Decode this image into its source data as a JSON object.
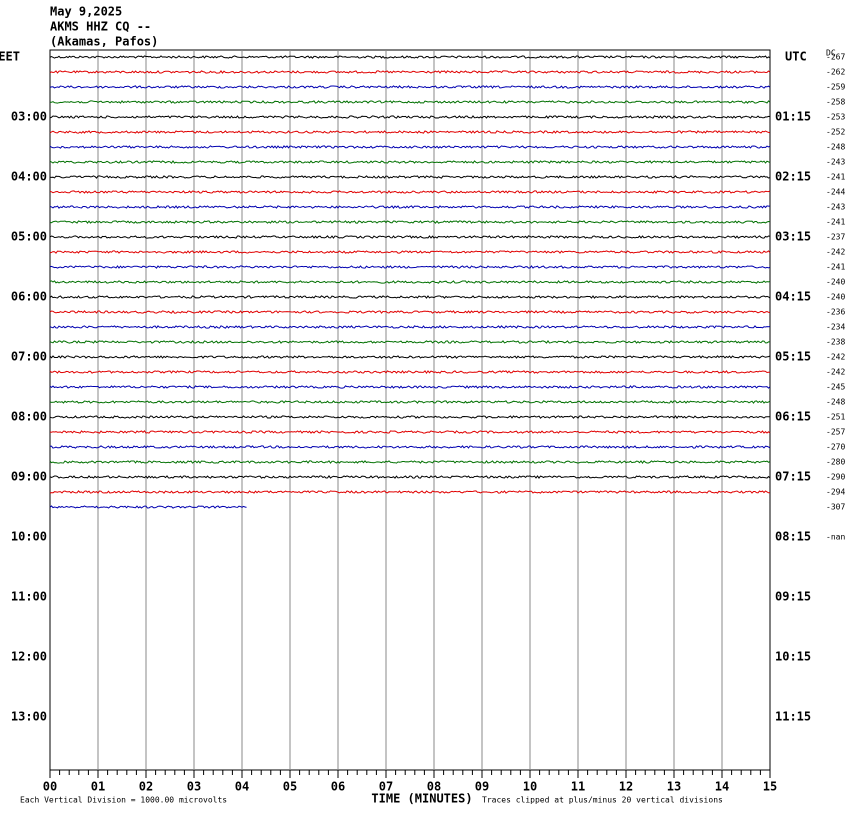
{
  "header": {
    "date": "May 9,2025",
    "station": "AKMS HHZ CQ --",
    "location": "(Akamas, Pafos)"
  },
  "left_header": "EET",
  "left_times": [
    "03:00",
    "04:00",
    "05:00",
    "06:00",
    "07:00",
    "08:00",
    "09:00",
    "10:00",
    "11:00",
    "12:00",
    "13:00"
  ],
  "right_header": "UTC",
  "right_times": [
    "01:15",
    "02:15",
    "03:15",
    "04:15",
    "05:15",
    "06:15",
    "07:15",
    "08:15",
    "09:15",
    "10:15",
    "11:15"
  ],
  "dc_header": "DC",
  "trace_colors": [
    "#000000",
    "#e00000",
    "#0000b0",
    "#007000"
  ],
  "traces": [
    {
      "dc": -267,
      "minutes": 15
    },
    {
      "dc": -262,
      "minutes": 15
    },
    {
      "dc": -259,
      "minutes": 15
    },
    {
      "dc": -258,
      "minutes": 15
    },
    {
      "dc": -253,
      "minutes": 15
    },
    {
      "dc": -252,
      "minutes": 15
    },
    {
      "dc": -248,
      "minutes": 15
    },
    {
      "dc": -243,
      "minutes": 15
    },
    {
      "dc": -241,
      "minutes": 15
    },
    {
      "dc": -244,
      "minutes": 15
    },
    {
      "dc": -243,
      "minutes": 15
    },
    {
      "dc": -241,
      "minutes": 15
    },
    {
      "dc": -237,
      "minutes": 15
    },
    {
      "dc": -242,
      "minutes": 15
    },
    {
      "dc": -241,
      "minutes": 15
    },
    {
      "dc": -240,
      "minutes": 15
    },
    {
      "dc": -240,
      "minutes": 15
    },
    {
      "dc": -236,
      "minutes": 15
    },
    {
      "dc": -234,
      "minutes": 15
    },
    {
      "dc": -238,
      "minutes": 15
    },
    {
      "dc": -242,
      "minutes": 15
    },
    {
      "dc": -242,
      "minutes": 15
    },
    {
      "dc": -245,
      "minutes": 15
    },
    {
      "dc": -248,
      "minutes": 15
    },
    {
      "dc": -251,
      "minutes": 15
    },
    {
      "dc": -257,
      "minutes": 15
    },
    {
      "dc": -270,
      "minutes": 15
    },
    {
      "dc": -280,
      "minutes": 15
    },
    {
      "dc": -290,
      "minutes": 15
    },
    {
      "dc": -294,
      "minutes": 15
    },
    {
      "dc": -307,
      "minutes": 4.1
    }
  ],
  "missing_dc": "-nan",
  "xtick_labels": [
    "00",
    "01",
    "02",
    "03",
    "04",
    "05",
    "06",
    "07",
    "08",
    "09",
    "10",
    "11",
    "12",
    "13",
    "14",
    "15"
  ],
  "x_axis_label": "TIME (MINUTES)",
  "scale_note": "Each Vertical Division = 1000.00 microvolts",
  "clip_note": "Traces clipped at plus/minus 20 vertical divisions"
}
